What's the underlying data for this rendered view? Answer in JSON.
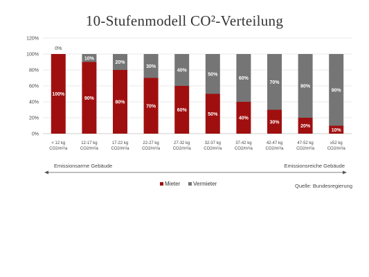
{
  "chart_data": {
    "type": "bar",
    "stacked": true,
    "title": "10-Stufenmodell CO²-Verteilung",
    "categories": [
      [
        "< 12 kg",
        "CO2/m²/a"
      ],
      [
        "12-17 kg",
        "CO2/m²/a"
      ],
      [
        "17-22 kg",
        "CO2/m²/a"
      ],
      [
        "22-27 kg",
        "CO2/m²/a"
      ],
      [
        "27-32 kg",
        "CO2/m²/a"
      ],
      [
        "32-37 kg",
        "CO2/m²/a"
      ],
      [
        "37-42 kg",
        "CO2/m²/a"
      ],
      [
        "42-47 kg",
        "CO2/m²/a"
      ],
      [
        "47-52 kg",
        "CO2/m²/a"
      ],
      [
        "≥52 kg",
        "CO2/m²/a"
      ]
    ],
    "series": [
      {
        "name": "Mieter",
        "color": "#a00f0f",
        "values": [
          100,
          90,
          80,
          70,
          60,
          50,
          40,
          30,
          20,
          10
        ]
      },
      {
        "name": "Vermieter",
        "color": "#757575",
        "values": [
          0,
          10,
          20,
          30,
          40,
          50,
          60,
          70,
          80,
          90
        ]
      }
    ],
    "value_suffix": "%",
    "ylim": [
      0,
      120
    ],
    "yticks": [
      0,
      20,
      40,
      60,
      80,
      100,
      120
    ],
    "ytick_labels": [
      "0%",
      "20%",
      "40%",
      "60%",
      "80%",
      "100%",
      "120%"
    ],
    "grid": true,
    "legend_position": "bottom",
    "annotations": {
      "left": "Emissionsarme Gebäude",
      "right": "Emissionsreiche Gebäude"
    },
    "source": "Quelle: Bundesregierung"
  }
}
